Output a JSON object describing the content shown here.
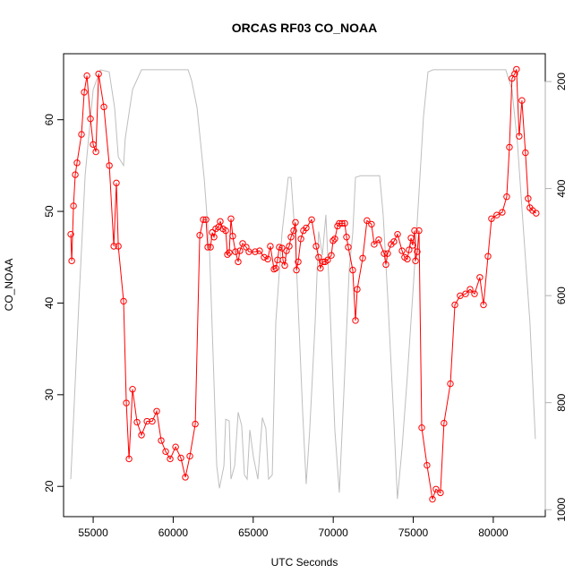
{
  "chart_data": {
    "type": "line",
    "title": "ORCAS RF03 CO_NOAA",
    "x_label": "UTC Seconds",
    "y_label": "CO_NOAA",
    "xlim": [
      53150,
      83250
    ],
    "xticks": [
      55000,
      60000,
      65000,
      70000,
      75000,
      80000
    ],
    "ylim": [
      16.7,
      67.2
    ],
    "yticks": [
      20,
      30,
      40,
      50,
      60
    ],
    "y2lim": [
      1013,
      148
    ],
    "y2ticks": [
      200,
      400,
      600,
      800,
      1000
    ],
    "y2_color": "#b0b0b0",
    "series": [
      {
        "color": "#bebebe",
        "axis": "y2",
        "marker": "none",
        "x": [
          53600,
          54100,
          54500,
          55000,
          55450,
          56000,
          56340,
          56570,
          56900,
          57000,
          57460,
          58020,
          58970,
          60930,
          61150,
          61490,
          61940,
          62270,
          62500,
          62720,
          62890,
          63170,
          63280,
          63500,
          63610,
          63840,
          64060,
          64280,
          64450,
          64620,
          64790,
          65010,
          65290,
          65570,
          65790,
          65960,
          66190,
          66410,
          66800,
          67190,
          67360,
          67640,
          68090,
          68310,
          68530,
          68870,
          69090,
          69320,
          69540,
          69770,
          70100,
          70380,
          70660,
          71000,
          71220,
          71390,
          71720,
          72900,
          73120,
          73400,
          73790,
          74010,
          74300,
          74630,
          75020,
          75410,
          75640,
          75920,
          76250,
          80780,
          81170,
          81510,
          81900,
          82290,
          82630
        ],
        "values": [
          943,
          617,
          374,
          215,
          178,
          182,
          249,
          341,
          357,
          307,
          215,
          178,
          178,
          178,
          198,
          249,
          382,
          516,
          717,
          918,
          960,
          918,
          831,
          834,
          943,
          918,
          818,
          843,
          935,
          943,
          851,
          901,
          943,
          828,
          848,
          943,
          935,
          650,
          483,
          379,
          379,
          500,
          818,
          952,
          851,
          650,
          480,
          525,
          449,
          600,
          851,
          968,
          784,
          550,
          483,
          379,
          376,
          376,
          449,
          600,
          835,
          980,
          885,
          751,
          575,
          382,
          265,
          182,
          178,
          178,
          215,
          315,
          483,
          650,
          868
        ]
      },
      {
        "color": "#ff0000",
        "marker": "circle",
        "x": [
          53600,
          53660,
          53770,
          53880,
          53990,
          54270,
          54440,
          54610,
          54830,
          55000,
          55170,
          55340,
          55670,
          56010,
          56290,
          56450,
          56570,
          56900,
          57070,
          57240,
          57460,
          57740,
          58020,
          58360,
          58690,
          58970,
          59250,
          59530,
          59810,
          60150,
          60480,
          60760,
          61040,
          61380,
          61660,
          61880,
          62050,
          62160,
          62330,
          62440,
          62550,
          62660,
          62830,
          62940,
          63110,
          63280,
          63390,
          63500,
          63610,
          63720,
          63890,
          64060,
          64170,
          64340,
          64560,
          64730,
          65120,
          65400,
          65680,
          65910,
          66070,
          66300,
          66410,
          66520,
          66630,
          66800,
          66860,
          66970,
          67080,
          67250,
          67360,
          67530,
          67640,
          67700,
          67810,
          67980,
          68140,
          68310,
          68650,
          68930,
          69090,
          69200,
          69370,
          69490,
          69650,
          69880,
          69990,
          70100,
          70270,
          70380,
          70550,
          70720,
          70830,
          70940,
          71220,
          71390,
          71500,
          71840,
          72110,
          72390,
          72560,
          72840,
          73180,
          73290,
          73400,
          73620,
          73790,
          74020,
          74300,
          74460,
          74630,
          74740,
          74860,
          74970,
          75080,
          75140,
          75250,
          75360,
          75530,
          75860,
          76200,
          76420,
          76700,
          76920,
          77320,
          77600,
          77930,
          78270,
          78550,
          78830,
          79160,
          79390,
          79670,
          79890,
          80220,
          80560,
          80840,
          81010,
          81170,
          81340,
          81450,
          81620,
          81790,
          82010,
          82180,
          82290,
          82460,
          82680
        ],
        "values": [
          47.5,
          44.6,
          50.6,
          54.0,
          55.3,
          58.4,
          63.0,
          64.8,
          60.1,
          57.3,
          56.5,
          65.0,
          61.4,
          55.0,
          46.2,
          53.1,
          46.2,
          40.2,
          29.1,
          23.0,
          30.6,
          27.0,
          25.6,
          27.1,
          27.1,
          28.2,
          25.0,
          23.8,
          23.0,
          24.3,
          23.1,
          21.0,
          23.3,
          26.8,
          47.4,
          49.1,
          49.1,
          46.1,
          46.1,
          47.7,
          47.2,
          48.1,
          48.3,
          48.9,
          48.1,
          47.9,
          45.3,
          45.5,
          49.2,
          47.3,
          45.6,
          44.5,
          45.7,
          46.5,
          46.1,
          45.6,
          45.6,
          45.7,
          45.0,
          44.8,
          46.2,
          43.7,
          43.8,
          44.7,
          46.1,
          46.0,
          44.7,
          44.1,
          45.7,
          46.2,
          47.2,
          47.9,
          48.8,
          43.6,
          44.5,
          47.0,
          47.9,
          48.2,
          49.1,
          46.2,
          45.0,
          43.8,
          44.5,
          44.5,
          44.7,
          45.2,
          46.8,
          47.0,
          48.4,
          48.7,
          48.7,
          48.7,
          47.2,
          46.1,
          43.6,
          38.1,
          41.5,
          44.9,
          49.0,
          48.6,
          46.4,
          46.9,
          45.4,
          44.2,
          45.4,
          46.4,
          46.7,
          47.5,
          45.7,
          45.0,
          44.8,
          45.8,
          47.1,
          46.3,
          47.9,
          44.6,
          45.6,
          47.9,
          26.4,
          22.3,
          18.6,
          19.7,
          19.3,
          26.9,
          31.2,
          39.8,
          40.8,
          41.0,
          41.5,
          41.0,
          42.8,
          39.8,
          45.1,
          49.2,
          49.6,
          49.9,
          51.6,
          57.0,
          64.5,
          65.0,
          65.5,
          58.2,
          62.1,
          56.4,
          51.4,
          50.4,
          50.1,
          49.8
        ]
      }
    ]
  }
}
